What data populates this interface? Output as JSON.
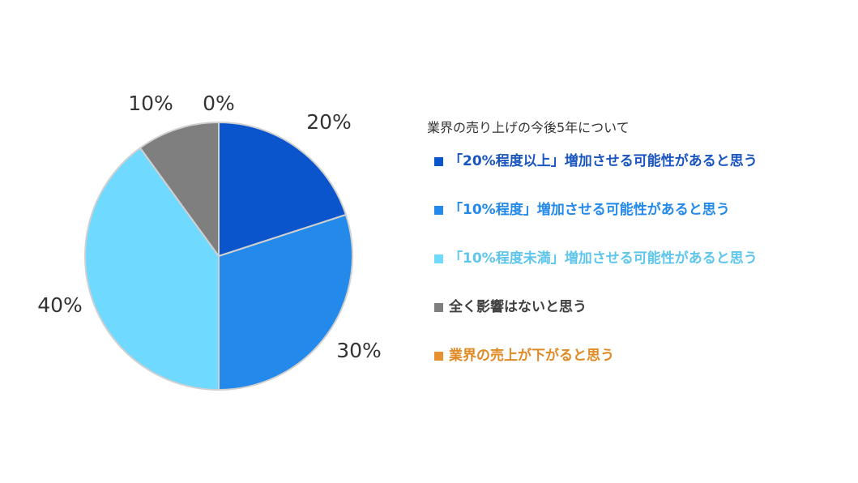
{
  "chart_data": {
    "type": "pie",
    "title": "業界の売り上げの今後5年について",
    "categories": [
      "「20%程度以上」増加させる可能性があると思う",
      "「10%程度」増加させる可能性があると思う",
      "「10%程度未満」増加させる可能性があると思う",
      " 全く影響はないと思う",
      " 業界の売上が下がると思う"
    ],
    "values": [
      20,
      30,
      40,
      10,
      0
    ],
    "labels": [
      "20%",
      "30%",
      "40%",
      "10%",
      "0%"
    ],
    "colors": [
      "#0b55cc",
      "#2389ea",
      "#70d9ff",
      "#7f7f7f",
      "#e89030"
    ],
    "legend_text_colors": [
      "#1a55c0",
      "#2389ea",
      "#5ec6ec",
      "#404040",
      "#e08a25"
    ],
    "legend_position": "right"
  }
}
